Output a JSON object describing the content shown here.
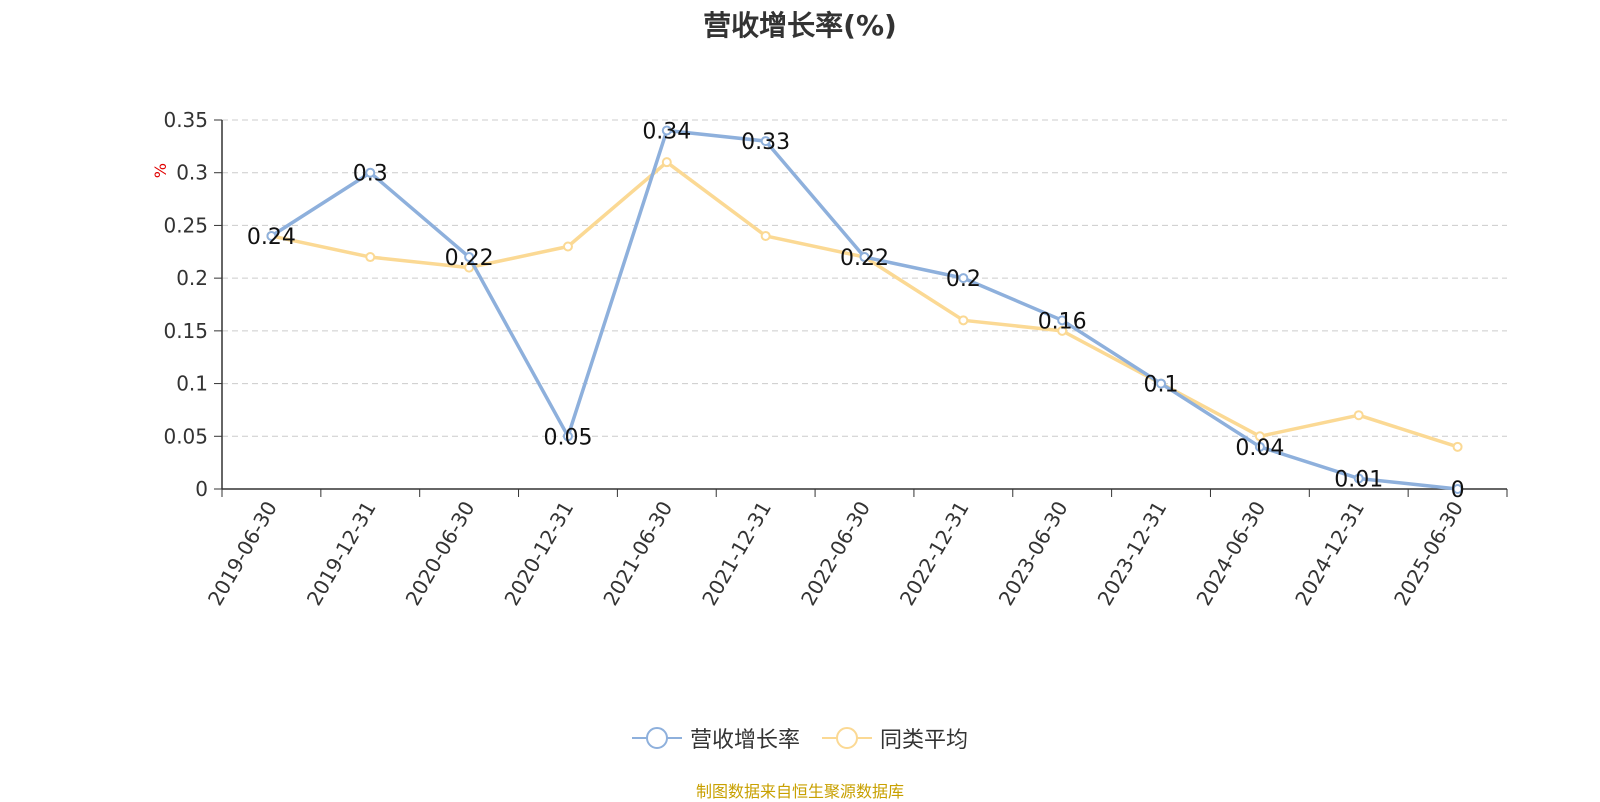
{
  "chart_data": {
    "type": "line",
    "title": "营收增长率(%)",
    "ylabel": "%",
    "ylim": [
      0,
      0.35
    ],
    "yticks": [
      0,
      0.05,
      0.1,
      0.15,
      0.2,
      0.25,
      0.3,
      0.35
    ],
    "ytick_labels": [
      "0",
      "0.05",
      "0.1",
      "0.15",
      "0.2",
      "0.25",
      "0.3",
      "0.35"
    ],
    "grid": true,
    "legend_position": "bottom-center",
    "categories": [
      "2019-06-30",
      "2019-12-31",
      "2020-06-30",
      "2020-12-31",
      "2021-06-30",
      "2021-12-31",
      "2022-06-30",
      "2022-12-31",
      "2023-06-30",
      "2023-12-31",
      "2024-06-30",
      "2024-12-31",
      "2025-06-30"
    ],
    "series": [
      {
        "name": "营收增长率",
        "color": "#8eb0dc",
        "values": [
          0.24,
          0.3,
          0.22,
          0.05,
          0.34,
          0.33,
          0.22,
          0.2,
          0.16,
          0.1,
          0.04,
          0.01,
          0
        ],
        "data_labels": [
          "0.24",
          "0.3",
          "0.22",
          "0.05",
          "0.34",
          "0.33",
          "0.22",
          "0.2",
          "0.16",
          "0.1",
          "0.04",
          "0.01",
          "0"
        ]
      },
      {
        "name": "同类平均",
        "color": "#fbd994",
        "values": [
          0.24,
          0.22,
          0.21,
          0.23,
          0.31,
          0.24,
          0.22,
          0.16,
          0.15,
          0.1,
          0.05,
          0.07,
          0.04
        ]
      }
    ]
  },
  "source_note": "制图数据来自恒生聚源数据库"
}
